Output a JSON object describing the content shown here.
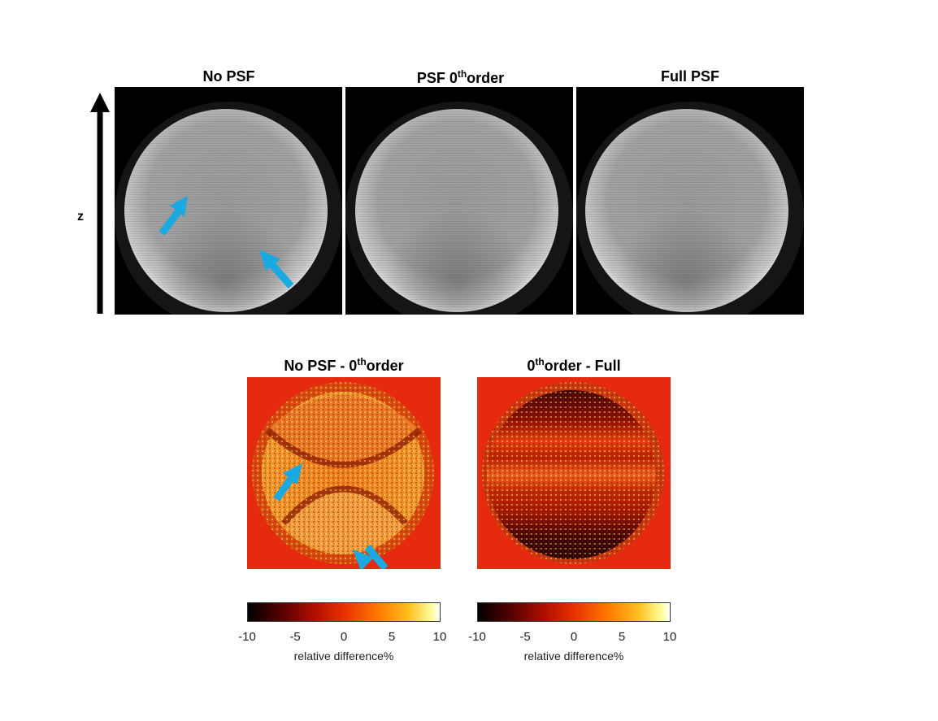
{
  "top_row": {
    "panels": [
      {
        "title_pre": "No PSF",
        "title_sup": "",
        "title_post": ""
      },
      {
        "title_pre": "PSF 0",
        "title_sup": "th",
        "title_post": "order"
      },
      {
        "title_pre": "Full PSF",
        "title_sup": "",
        "title_post": ""
      }
    ],
    "axis_label": "z"
  },
  "bottom_row": {
    "panels": [
      {
        "title_pre": "No PSF - 0",
        "title_sup": "th",
        "title_post": "order"
      },
      {
        "title_pre": "0",
        "title_sup": "th",
        "title_post": "order - Full"
      }
    ],
    "colorbar": {
      "ticks": [
        "-10",
        "-5",
        "0",
        "5",
        "10"
      ],
      "label": "relative difference%",
      "colormap": [
        "#000000",
        "#5a0000",
        "#b01000",
        "#e83000",
        "#ff7a00",
        "#ffc020",
        "#ffffa0",
        "#ffffff"
      ]
    }
  },
  "colors": {
    "arrow": "#1aa9e0",
    "background_red": "#e62a10"
  }
}
